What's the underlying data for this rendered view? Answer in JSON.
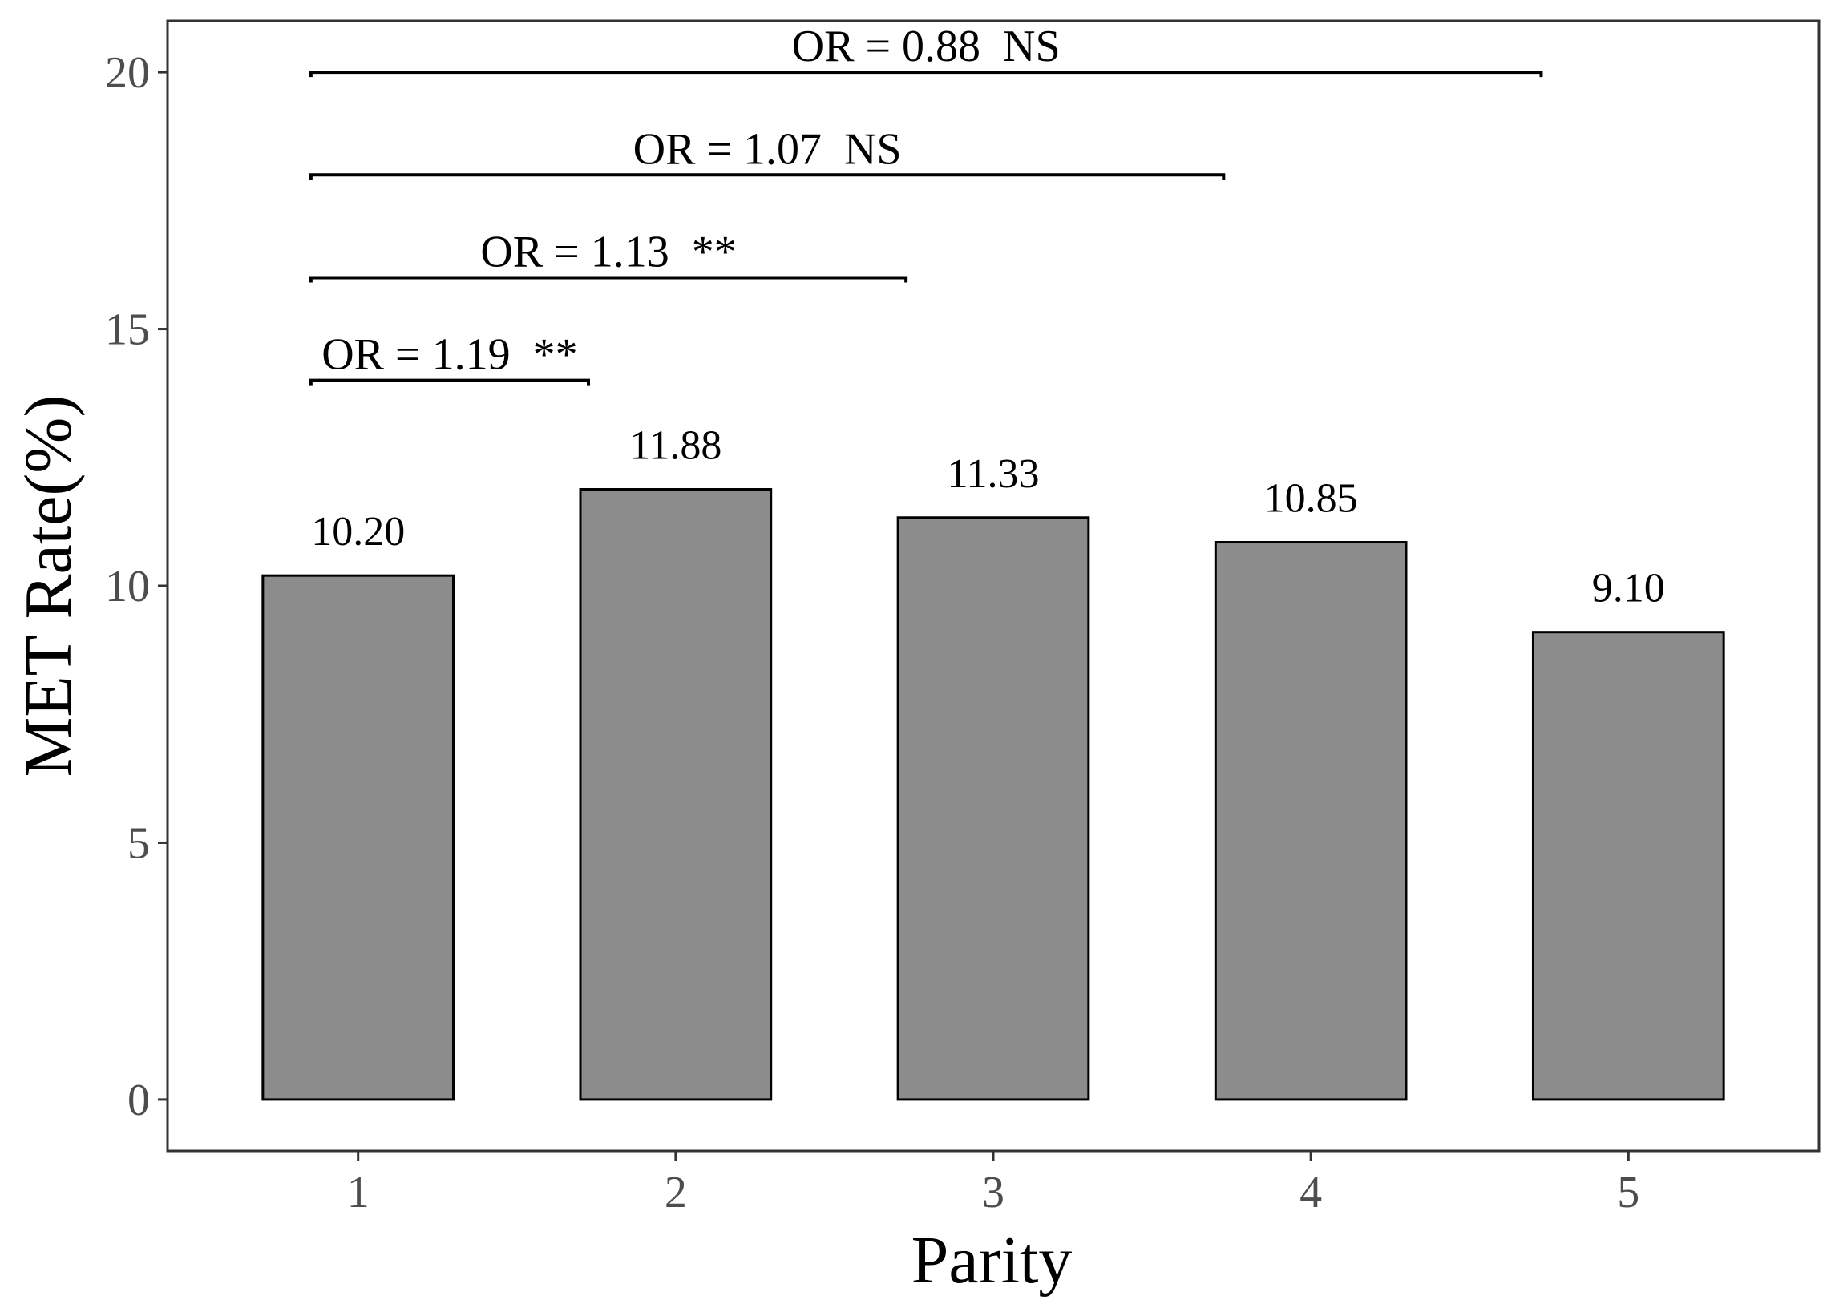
{
  "chart_data": {
    "type": "bar",
    "categories": [
      "1",
      "2",
      "3",
      "4",
      "5"
    ],
    "values": [
      10.2,
      11.88,
      11.33,
      10.85,
      9.1
    ],
    "data_labels": [
      "10.20",
      "11.88",
      "11.33",
      "10.85",
      "9.10"
    ],
    "xlabel": "Parity",
    "ylabel": "MET Rate(%)",
    "ylim": [
      -1,
      21
    ],
    "yticks": [
      0,
      5,
      10,
      15,
      20
    ],
    "ytick_labels": [
      "0",
      "5",
      "10",
      "15",
      "20"
    ],
    "grid": false,
    "legend": null,
    "comparisons": [
      {
        "from": "1",
        "to": "2",
        "y": 14,
        "label": "OR = 1.19  **"
      },
      {
        "from": "1",
        "to": "3",
        "y": 16,
        "label": "OR = 1.13  **"
      },
      {
        "from": "1",
        "to": "4",
        "y": 18,
        "label": "OR = 1.07  NS"
      },
      {
        "from": "1",
        "to": "5",
        "y": 20,
        "label": "OR = 0.88  NS"
      }
    ],
    "colors": {
      "bar_fill": "#8c8c8c",
      "bar_stroke": "#000000",
      "axis": "#333333",
      "tick_text": "#4d4d4d"
    }
  }
}
